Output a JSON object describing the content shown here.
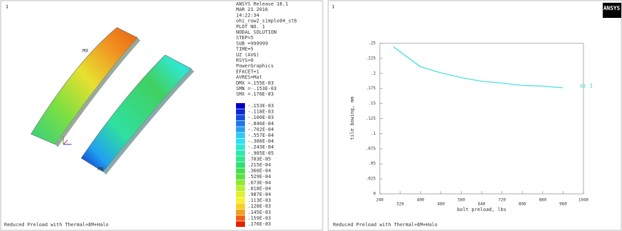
{
  "contour_plot": {
    "window_number": "1",
    "info_lines": [
      "ANSYS Release 16.1",
      "MAR 21 2016",
      "14:22:34",
      "ohi_row2_simple04_st6",
      "PLOT NO.   1",
      "NODAL SOLUTION",
      "STEP=5",
      "SUB =999999",
      "TIME=5",
      "UZ       (AVG)",
      "RSYS=0",
      "PowerGraphics",
      "EFACET=1",
      "AVRES=Mat",
      "DMX =.155E-03",
      "SMN =-.153E-03",
      "SMX =.176E-03"
    ],
    "legend": [
      {
        "label": "-.153E-03",
        "color": "#0000c8"
      },
      {
        "label": "-.118E-03",
        "color": "#0a28d6"
      },
      {
        "label": "-.100E-03",
        "color": "#1450e0"
      },
      {
        "label": "-.846E-04",
        "color": "#1e78e8"
      },
      {
        "label": "-.702E-04",
        "color": "#28a0f0"
      },
      {
        "label": "-.557E-04",
        "color": "#30c8f8"
      },
      {
        "label": "-.388E-04",
        "color": "#30e0f0"
      },
      {
        "label": "-.243E-04",
        "color": "#30e8d0"
      },
      {
        "label": "-.985E-05",
        "color": "#30e8b0"
      },
      {
        "label": ".703E-05",
        "color": "#30e890"
      },
      {
        "label": ".215E-04",
        "color": "#30e070"
      },
      {
        "label": ".360E-04",
        "color": "#40e050"
      },
      {
        "label": ".529E-04",
        "color": "#60e040"
      },
      {
        "label": ".673E-04",
        "color": "#90e830"
      },
      {
        "label": ".818E-04",
        "color": "#b8f030"
      },
      {
        "label": ".987E-04",
        "color": "#e0f030"
      },
      {
        "label": ".113E-03",
        "color": "#f8f030"
      },
      {
        "label": ".128E-03",
        "color": "#f8d020"
      },
      {
        "label": ".145E-03",
        "color": "#f0a020"
      },
      {
        "label": ".159E-03",
        "color": "#f06010"
      },
      {
        "label": ".176E-03",
        "color": "#e82000"
      }
    ],
    "markers": [
      "MX",
      "MN"
    ],
    "footer": "Reduced Preload  with Thermal+EM+Halo"
  },
  "chart_data": {
    "type": "line",
    "window_number": "1",
    "logo": "ANSYS",
    "footer": "Reduced Preload  with Thermal+EM+Halo",
    "x_label": "bolt preload, lbs",
    "y_label": "tile bowing, mm",
    "x": [
      294,
      400,
      480,
      560,
      640,
      720,
      800,
      880,
      960
    ],
    "series": [
      {
        "name": "dz 1",
        "color": "#33dede",
        "values": [
          0.244,
          0.211,
          0.201,
          0.193,
          0.187,
          0.184,
          0.18,
          0.179,
          0.176
        ]
      }
    ],
    "xlim": [
      240,
      1040
    ],
    "xticks": [
      240,
      320,
      400,
      480,
      560,
      640,
      720,
      800,
      880,
      960,
      1040
    ],
    "ylim": [
      0,
      0.25
    ],
    "yticks": [
      0,
      {
        "value": 0.025,
        "label": ".025"
      },
      {
        "value": 0.05,
        "label": ".05"
      },
      {
        "value": 0.075,
        "label": ".075"
      },
      {
        "value": 0.1,
        "label": ".1"
      },
      {
        "value": 0.125,
        "label": ".125"
      },
      {
        "value": 0.15,
        "label": ".15"
      },
      {
        "value": 0.175,
        "label": ".175"
      },
      {
        "value": 0.2,
        "label": ".2"
      },
      {
        "value": 0.225,
        "label": ".225"
      },
      {
        "value": 0.25,
        "label": ".25"
      }
    ]
  }
}
